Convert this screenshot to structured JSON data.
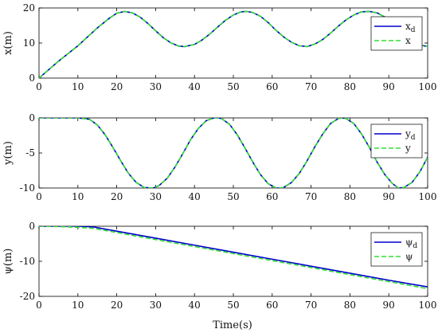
{
  "colors": {
    "desired": "#0000CC",
    "actual": "#33DD33",
    "axis": "#000000",
    "background": "#ffffff"
  },
  "chart_data": [
    {
      "type": "line",
      "ylabel": "x(m)",
      "xlabel": "",
      "xlim": [
        0,
        100
      ],
      "ylim": [
        0,
        20
      ],
      "xticks": [
        "0",
        "10",
        "20",
        "30",
        "40",
        "50",
        "60",
        "70",
        "80",
        "90",
        "100"
      ],
      "yticks": [
        "0",
        "10",
        "20"
      ],
      "legend_position": "right",
      "legend": [
        {
          "text": "x",
          "sub": "d",
          "style": "solid"
        },
        {
          "text": "x",
          "sub": "",
          "style": "dashed"
        }
      ],
      "series": [
        {
          "name": "x_d",
          "style": "solid",
          "x": [
            0,
            5,
            10,
            15,
            18,
            20,
            22,
            24,
            26,
            28,
            30,
            32,
            34,
            36,
            37.5,
            40,
            42,
            44,
            46,
            48,
            50,
            52,
            53.5,
            55,
            57,
            59,
            61,
            63,
            65,
            67,
            69,
            71,
            73,
            75,
            77,
            79,
            81,
            83,
            85,
            87,
            89,
            91,
            93,
            95,
            97,
            99,
            100
          ],
          "y": [
            0,
            4.8,
            9.2,
            14.3,
            17.0,
            18.5,
            19.0,
            18.6,
            17.4,
            15.6,
            13.5,
            11.5,
            10.0,
            9.1,
            9.0,
            9.6,
            10.9,
            12.6,
            14.6,
            16.5,
            18.0,
            18.9,
            19.0,
            18.7,
            17.6,
            15.8,
            13.6,
            11.7,
            10.2,
            9.2,
            9.0,
            9.7,
            11.0,
            12.8,
            14.8,
            16.6,
            18.0,
            18.9,
            19.0,
            18.6,
            17.4,
            15.5,
            13.4,
            11.5,
            10.0,
            9.2,
            9.0
          ]
        },
        {
          "name": "x",
          "style": "dashed",
          "x": [
            0,
            5,
            10,
            15,
            18,
            20,
            22,
            24,
            26,
            28,
            30,
            32,
            34,
            36,
            37.5,
            40,
            42,
            44,
            46,
            48,
            50,
            52,
            53.5,
            55,
            57,
            59,
            61,
            63,
            65,
            67,
            69,
            71,
            73,
            75,
            77,
            79,
            81,
            83,
            85,
            87,
            89,
            91,
            93,
            95,
            97,
            99,
            100
          ],
          "y": [
            0,
            4.8,
            9.2,
            14.3,
            17.0,
            18.5,
            19.0,
            18.6,
            17.4,
            15.6,
            13.5,
            11.5,
            10.0,
            9.1,
            9.0,
            9.6,
            10.9,
            12.6,
            14.6,
            16.5,
            18.0,
            18.9,
            19.0,
            18.7,
            17.6,
            15.8,
            13.6,
            11.7,
            10.2,
            9.2,
            9.0,
            9.7,
            11.0,
            12.8,
            14.8,
            16.6,
            18.0,
            18.9,
            19.0,
            18.6,
            17.4,
            15.5,
            13.4,
            11.5,
            10.0,
            9.2,
            9.0
          ]
        }
      ]
    },
    {
      "type": "line",
      "ylabel": "y(m)",
      "xlabel": "",
      "xlim": [
        0,
        100
      ],
      "ylim": [
        -10,
        0
      ],
      "xticks": [
        "0",
        "10",
        "20",
        "30",
        "40",
        "50",
        "60",
        "70",
        "80",
        "90",
        "100"
      ],
      "yticks": [
        "0",
        "-5",
        "-10"
      ],
      "legend_position": "right",
      "legend": [
        {
          "text": "y",
          "sub": "d",
          "style": "solid"
        },
        {
          "text": "y",
          "sub": "",
          "style": "dashed"
        }
      ],
      "series": [
        {
          "name": "y_d",
          "style": "solid",
          "x": [
            0,
            5,
            10,
            13,
            15,
            17,
            19,
            21,
            23,
            25,
            27,
            29,
            30,
            31,
            33,
            35,
            37,
            39,
            41,
            43,
            45,
            46,
            47,
            49,
            51,
            53,
            55,
            57,
            59,
            61,
            62,
            63,
            65,
            67,
            69,
            71,
            73,
            75,
            77,
            78,
            79,
            81,
            83,
            85,
            87,
            89,
            91,
            92.5,
            94,
            96,
            98,
            100
          ],
          "y": [
            0,
            0,
            0,
            -0.2,
            -1.0,
            -2.4,
            -4.2,
            -6.1,
            -7.9,
            -9.2,
            -9.9,
            -10.0,
            -9.9,
            -9.6,
            -8.6,
            -7.0,
            -5.1,
            -3.1,
            -1.5,
            -0.4,
            0.0,
            0.0,
            -0.1,
            -0.9,
            -2.4,
            -4.3,
            -6.3,
            -8.1,
            -9.4,
            -10.0,
            -10.0,
            -9.9,
            -9.2,
            -7.9,
            -6.1,
            -4.1,
            -2.3,
            -0.8,
            -0.1,
            0.0,
            -0.1,
            -0.8,
            -2.3,
            -4.2,
            -6.3,
            -8.1,
            -9.4,
            -10.0,
            -9.9,
            -9.2,
            -7.7,
            -5.6
          ]
        },
        {
          "name": "y",
          "style": "dashed",
          "x": [
            0,
            5,
            10,
            13,
            15,
            17,
            19,
            21,
            23,
            25,
            27,
            29,
            30,
            31,
            33,
            35,
            37,
            39,
            41,
            43,
            45,
            46,
            47,
            49,
            51,
            53,
            55,
            57,
            59,
            61,
            62,
            63,
            65,
            67,
            69,
            71,
            73,
            75,
            77,
            78,
            79,
            81,
            83,
            85,
            87,
            89,
            91,
            92.5,
            94,
            96,
            98,
            100
          ],
          "y": [
            0,
            0,
            0,
            -0.2,
            -1.0,
            -2.4,
            -4.2,
            -6.1,
            -7.9,
            -9.2,
            -9.9,
            -10.0,
            -9.9,
            -9.6,
            -8.6,
            -7.0,
            -5.1,
            -3.1,
            -1.5,
            -0.4,
            0.0,
            0.0,
            -0.1,
            -0.9,
            -2.4,
            -4.3,
            -6.3,
            -8.1,
            -9.4,
            -10.0,
            -10.0,
            -9.9,
            -9.2,
            -7.9,
            -6.1,
            -4.1,
            -2.3,
            -0.8,
            -0.1,
            0.0,
            -0.1,
            -0.8,
            -2.3,
            -4.2,
            -6.3,
            -8.1,
            -9.4,
            -10.0,
            -9.9,
            -9.2,
            -7.7,
            -5.6
          ]
        }
      ]
    },
    {
      "type": "line",
      "ylabel": "ψ(m)",
      "xlabel": "Time(s)",
      "xlim": [
        0,
        100
      ],
      "ylim": [
        -20,
        0
      ],
      "xticks": [
        "0",
        "10",
        "20",
        "30",
        "40",
        "50",
        "60",
        "70",
        "80",
        "90",
        "100"
      ],
      "yticks": [
        "0",
        "-10",
        "-20"
      ],
      "legend_position": "right",
      "legend": [
        {
          "text": "ψ",
          "sub": "d",
          "style": "solid"
        },
        {
          "text": "ψ",
          "sub": "",
          "style": "dashed"
        }
      ],
      "series": [
        {
          "name": "psi_d",
          "style": "solid",
          "x": [
            0,
            5,
            10,
            14,
            20,
            30,
            40,
            50,
            60,
            70,
            80,
            90,
            100
          ],
          "y": [
            0,
            0,
            0,
            -0.2,
            -1.4,
            -3.4,
            -5.4,
            -7.4,
            -9.4,
            -11.4,
            -13.4,
            -15.4,
            -17.3
          ]
        },
        {
          "name": "psi",
          "style": "dashed",
          "x": [
            0,
            5,
            10,
            14,
            20,
            30,
            40,
            50,
            60,
            70,
            80,
            90,
            100
          ],
          "y": [
            0,
            -0.1,
            -0.3,
            -0.6,
            -1.8,
            -3.8,
            -5.8,
            -7.8,
            -9.8,
            -11.8,
            -13.8,
            -15.8,
            -17.8
          ]
        }
      ]
    }
  ]
}
